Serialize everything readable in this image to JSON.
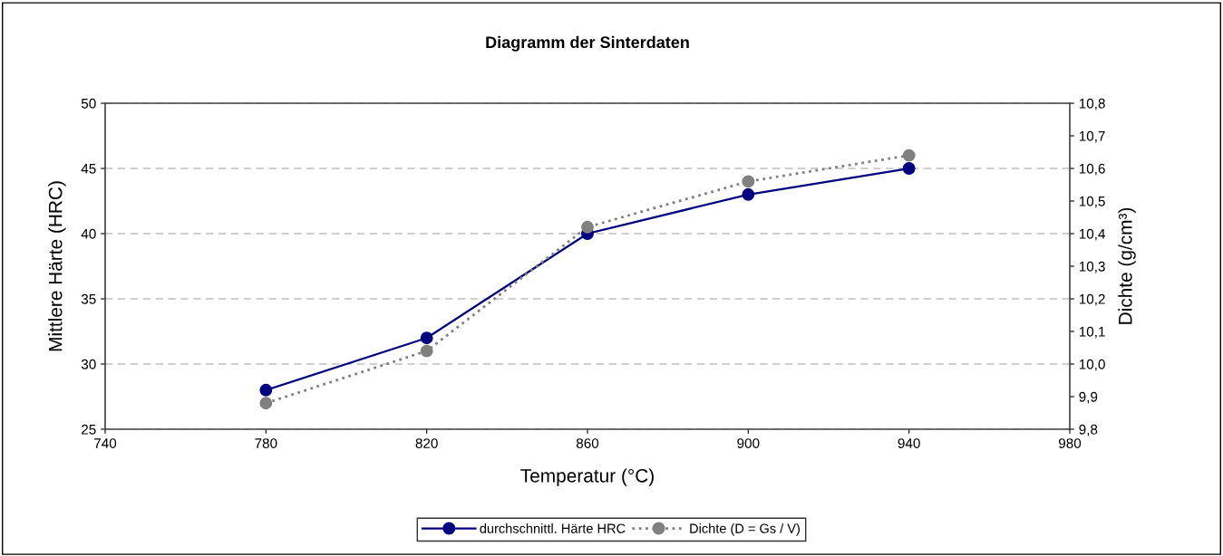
{
  "chart_data": {
    "type": "line",
    "title": "Diagramm der Sinterdaten",
    "xlabel": "Temperatur (°C)",
    "ylabel": "Mittlere Härte (HRC)",
    "y2label": "Dichte (g/cm³)",
    "x": [
      780,
      820,
      860,
      900,
      940
    ],
    "series": [
      {
        "name": "durchschnittl. Härte HRC",
        "color": "#000080",
        "values": [
          28,
          32,
          40,
          43,
          45
        ],
        "line_style": "solid"
      },
      {
        "name": "Dichte (D = Gs / V)",
        "color": "#808080",
        "values": [
          9.88,
          10.04,
          10.42,
          10.56,
          10.64
        ],
        "axis": "y2",
        "line_style": "dotted"
      }
    ],
    "xlim": [
      740,
      980
    ],
    "xticks": [
      740,
      780,
      820,
      860,
      900,
      940,
      980
    ],
    "ylim": [
      25,
      50
    ],
    "yticks": [
      25,
      30,
      35,
      40,
      45,
      50
    ],
    "y2lim": [
      9.8,
      10.8
    ],
    "y2ticks": [
      {
        "value": 9.8,
        "label": "9,8"
      },
      {
        "value": 9.9,
        "label": "9,9"
      },
      {
        "value": 10.0,
        "label": "10,0"
      },
      {
        "value": 10.1,
        "label": "10,1"
      },
      {
        "value": 10.2,
        "label": "10,2"
      },
      {
        "value": 10.3,
        "label": "10,3"
      },
      {
        "value": 10.4,
        "label": "10,4"
      },
      {
        "value": 10.5,
        "label": "10,5"
      },
      {
        "value": 10.6,
        "label": "10,6"
      },
      {
        "value": 10.7,
        "label": "10,7"
      },
      {
        "value": 10.8,
        "label": "10,8"
      }
    ],
    "grid": "y",
    "legend": "bottom",
    "marker": "circle"
  }
}
